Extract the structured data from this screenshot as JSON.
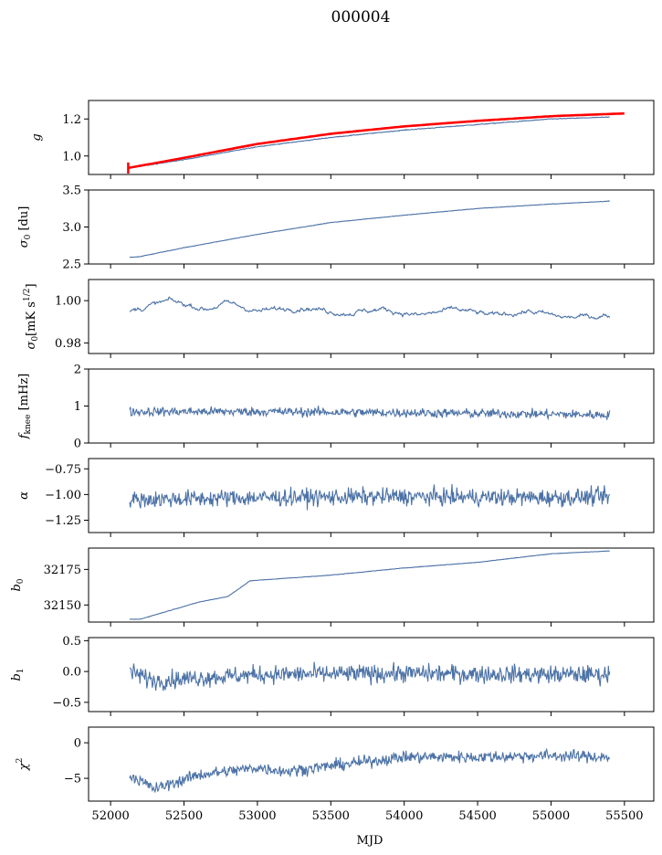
{
  "title": "000004",
  "xlabel": "MJD",
  "colors": {
    "series": "#4c72a6",
    "fit": "#ff0000"
  },
  "chart_data": [
    {
      "type": "line",
      "ylabel": "g",
      "ylabel_sub": "",
      "xlim": [
        51850,
        55700
      ],
      "ylim": [
        0.9,
        1.3
      ],
      "yticks": [
        1.0,
        1.2
      ],
      "ytick_labels": [
        "1.0",
        "1.2"
      ],
      "x": [
        52130,
        52500,
        53000,
        53500,
        54000,
        54500,
        55000,
        55400
      ],
      "values": [
        0.935,
        0.98,
        1.05,
        1.1,
        1.14,
        1.17,
        1.2,
        1.21
      ],
      "fit": {
        "x": [
          52120,
          52500,
          53000,
          53500,
          54000,
          54500,
          55000,
          55500
        ],
        "values": [
          0.935,
          0.99,
          1.065,
          1.12,
          1.16,
          1.19,
          1.215,
          1.23
        ],
        "errbar": {
          "x": 52120,
          "y": 0.935,
          "err": 0.03
        }
      },
      "noise": 0.002
    },
    {
      "type": "line",
      "ylabel": "σ",
      "ylabel_sub": "0",
      "ylabel_unit": " [du]",
      "xlim": [
        51850,
        55700
      ],
      "ylim": [
        2.5,
        3.5
      ],
      "yticks": [
        2.5,
        3.0,
        3.5
      ],
      "ytick_labels": [
        "2.5",
        "3.0",
        "3.5"
      ],
      "x": [
        52130,
        52200,
        52500,
        53000,
        53500,
        54000,
        54500,
        55000,
        55400
      ],
      "values": [
        2.59,
        2.6,
        2.72,
        2.9,
        3.06,
        3.16,
        3.25,
        3.31,
        3.35
      ],
      "noise": 0.003
    },
    {
      "type": "line",
      "ylabel": "σ",
      "ylabel_sub": "0",
      "ylabel_unit": "[mK s",
      "ylabel_sup": "1/2",
      "ylabel_end": "]",
      "xlim": [
        51850,
        55700
      ],
      "ylim": [
        0.975,
        1.01
      ],
      "yticks": [
        0.98,
        1.0
      ],
      "ytick_labels": [
        "0.98",
        "1.00"
      ],
      "x": [
        52130,
        52400,
        52650,
        52800,
        53000,
        53300,
        53600,
        53850,
        54100,
        54350,
        54600,
        54850,
        55100,
        55400
      ],
      "values": [
        0.995,
        1.0,
        0.996,
        0.999,
        0.995,
        0.997,
        0.994,
        0.996,
        0.993,
        0.996,
        0.993,
        0.995,
        0.992,
        0.993
      ],
      "noise": 0.0012
    },
    {
      "type": "line",
      "ylabel": "f",
      "ylabel_sub": "knee",
      "ylabel_unit": " [mHz]",
      "xlim": [
        51850,
        55700
      ],
      "ylim": [
        0,
        2
      ],
      "yticks": [
        0,
        1,
        2
      ],
      "ytick_labels": [
        "0",
        "1",
        "2"
      ],
      "x": [
        52130,
        53000,
        54000,
        55000,
        55400
      ],
      "values": [
        0.85,
        0.85,
        0.82,
        0.78,
        0.76
      ],
      "noise": 0.12
    },
    {
      "type": "line",
      "ylabel": "α",
      "ylabel_sub": "",
      "xlim": [
        51850,
        55700
      ],
      "ylim": [
        -1.37,
        -0.65
      ],
      "yticks": [
        -1.25,
        -1.0,
        -0.75
      ],
      "ytick_labels": [
        "−1.25",
        "−1.00",
        "−0.75"
      ],
      "x": [
        52130,
        53000,
        54000,
        55000,
        55400
      ],
      "values": [
        -1.05,
        -1.03,
        -1.02,
        -1.03,
        -1.02
      ],
      "noise": 0.08
    },
    {
      "type": "line",
      "ylabel": "b",
      "ylabel_sub": "0",
      "xlim": [
        51850,
        55700
      ],
      "ylim": [
        32138,
        32190
      ],
      "yticks": [
        32150,
        32175
      ],
      "ytick_labels": [
        "32150",
        "32175"
      ],
      "x": [
        52130,
        52200,
        52400,
        52600,
        52800,
        52950,
        53500,
        54000,
        54500,
        55000,
        55400
      ],
      "values": [
        32140,
        32140,
        32146,
        32152,
        32156,
        32167,
        32171,
        32176,
        32180,
        32186,
        32188
      ],
      "noise": 0.15
    },
    {
      "type": "line",
      "ylabel": "b",
      "ylabel_sub": "1",
      "xlim": [
        51850,
        55700
      ],
      "ylim": [
        -0.65,
        0.55
      ],
      "yticks": [
        -0.5,
        0.0,
        0.5
      ],
      "ytick_labels": [
        "−0.5",
        "0.0",
        "0.5"
      ],
      "x": [
        52130,
        52300,
        52600,
        53000,
        54000,
        55000,
        55400
      ],
      "values": [
        0.0,
        -0.15,
        -0.1,
        -0.05,
        -0.03,
        -0.05,
        -0.05
      ],
      "noise": 0.14
    },
    {
      "type": "line",
      "ylabel": "χ",
      "ylabel_sup": "2",
      "xlim": [
        51850,
        55700
      ],
      "ylim": [
        -8.2,
        2.2
      ],
      "yticks": [
        -5,
        0
      ],
      "ytick_labels": [
        "−5",
        "0"
      ],
      "x": [
        52130,
        52300,
        52600,
        53000,
        53200,
        53600,
        54000,
        54500,
        55000,
        55400
      ],
      "values": [
        -4.5,
        -6.5,
        -4.5,
        -3.5,
        -4.0,
        -3.0,
        -2.0,
        -2.0,
        -1.8,
        -2.0
      ],
      "noise": 0.8,
      "xticks": [
        52000,
        52500,
        53000,
        53500,
        54000,
        54500,
        55000,
        55500
      ],
      "xtick_labels": [
        "52000",
        "52500",
        "53000",
        "53500",
        "54000",
        "54500",
        "55000",
        "55500"
      ]
    }
  ]
}
